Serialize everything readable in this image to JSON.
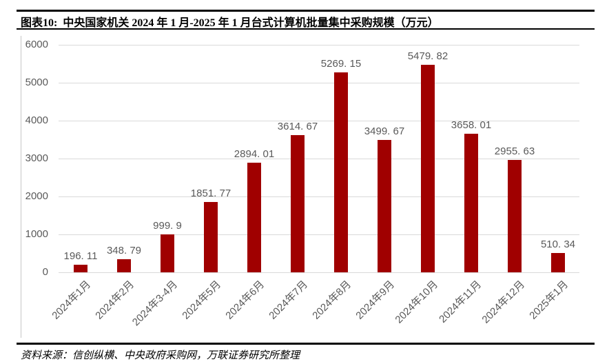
{
  "figure": {
    "title": "图表10:  中央国家机关 2024 年 1 月-2025 年 1 月台式计算机批量集中采购规模（万元）",
    "source": "资料来源：信创纵横、中央政府采购网，万联证券研究所整理"
  },
  "chart_data": {
    "type": "bar",
    "title": "中央国家机关2024年1月-2025年1月台式计算机批量集中采购规模（万元）",
    "categories": [
      "2024年1月",
      "2024年2月",
      "2024年3-4月",
      "2024年5月",
      "2024年6月",
      "2024年7月",
      "2024年8月",
      "2024年9月",
      "2024年10月",
      "2024年11月",
      "2024年12月",
      "2025年1月"
    ],
    "values": [
      196.11,
      348.79,
      999.9,
      1851.77,
      2894.01,
      3614.67,
      5269.15,
      3499.67,
      5479.82,
      3658.01,
      2955.63,
      510.34
    ],
    "value_labels": [
      "196. 11",
      "348. 79",
      "999. 9",
      "1851. 77",
      "2894. 01",
      "3614. 67",
      "5269. 15",
      "3499. 67",
      "5479. 82",
      "3658. 01",
      "2955. 63",
      "510. 34"
    ],
    "xlabel": "",
    "ylabel": "",
    "ylim": [
      0,
      6000
    ],
    "yticks": [
      0,
      1000,
      2000,
      3000,
      4000,
      5000,
      6000
    ],
    "grid": true,
    "legend": "none",
    "bar_color": "#A00000",
    "label_color": "#595959",
    "grid_color": "#D9D9D9"
  }
}
